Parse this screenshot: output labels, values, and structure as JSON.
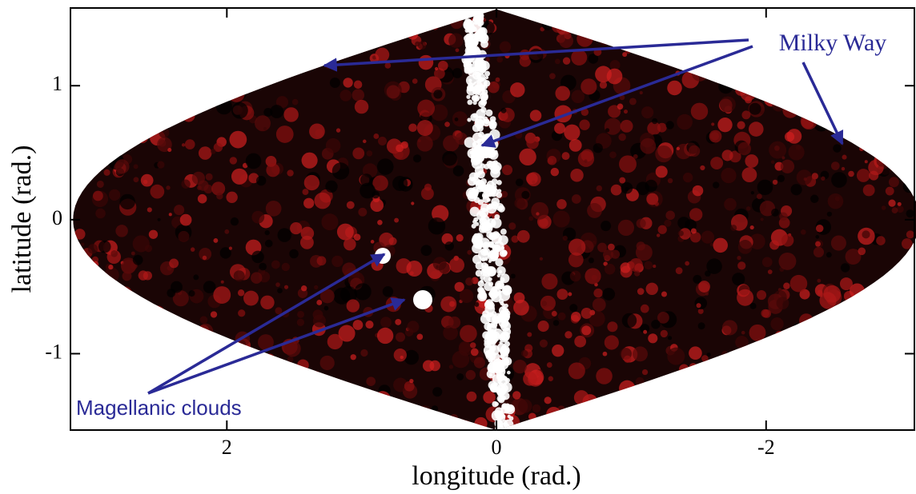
{
  "chart_data": {
    "type": "skymap",
    "xlabel": "longitude (rad.)",
    "ylabel": "latitude (rad.)",
    "xlim": [
      3.16,
      -3.1
    ],
    "ylim": [
      -1.57,
      1.58
    ],
    "xticks": [
      2,
      0,
      -2
    ],
    "yticks": [
      -1,
      0,
      1
    ],
    "annotations": [
      "Milky Way",
      "Magellanic clouds"
    ]
  }
}
